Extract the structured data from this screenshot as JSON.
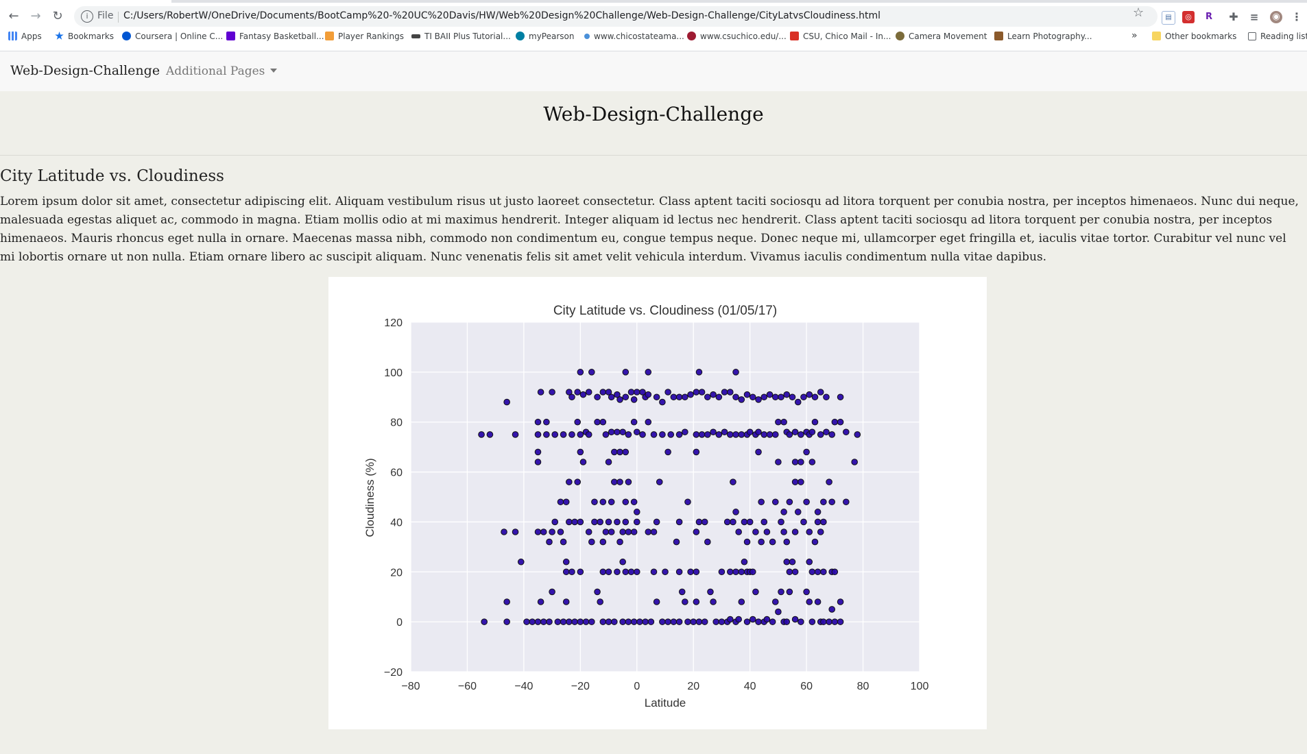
{
  "browser": {
    "back_icon": "back-arrow-icon",
    "forward_icon": "forward-arrow-icon",
    "reload_icon": "reload-icon",
    "file_label": "File",
    "url": "C:/Users/RobertW/OneDrive/Documents/BootCamp%20-%20UC%20Davis/HW/Web%20Design%20Challenge/Web-Design-Challenge/CityLatvsCloudiness.html",
    "bookmarks": [
      {
        "label": "Apps",
        "color": "#4285f4"
      },
      {
        "label": "Bookmarks",
        "color": "#1a73e8"
      },
      {
        "label": "Coursera | Online C...",
        "color": "#0056d2"
      },
      {
        "label": "Fantasy Basketball...",
        "color": "#6001d2"
      },
      {
        "label": "Player Rankings",
        "color": "#f29d38"
      },
      {
        "label": "TI BAII Plus Tutorial...",
        "color": "#444444"
      },
      {
        "label": "myPearson",
        "color": "#007fa3"
      },
      {
        "label": "www.chicostateama...",
        "color": "#4a90d9"
      },
      {
        "label": "www.csuchico.edu/...",
        "color": "#9e1b32"
      },
      {
        "label": "CSU, Chico Mail - In...",
        "color": "#d93025"
      },
      {
        "label": "Camera Movement",
        "color": "#7b6b3a"
      },
      {
        "label": "Learn Photography...",
        "color": "#8b5a2b"
      }
    ],
    "more_bookmarks": "»",
    "other_bookmarks": "Other bookmarks",
    "reading_list": "Reading list"
  },
  "navbar": {
    "brand": "Web-Design-Challenge",
    "dropdown_label": "Additional Pages"
  },
  "page": {
    "title": "Web-Design-Challenge",
    "section_title": "City Latitude vs. Cloudiness",
    "paragraph": "Lorem ipsum dolor sit amet, consectetur adipiscing elit. Aliquam vestibulum risus ut justo laoreet consectetur. Class aptent taciti sociosqu ad litora torquent per conubia nostra, per inceptos himenaeos. Nunc dui neque, malesuada egestas aliquet ac, commodo in magna. Etiam mollis odio at mi maximus hendrerit. Integer aliquam id lectus nec hendrerit. Class aptent taciti sociosqu ad litora torquent per conubia nostra, per inceptos himenaeos. Mauris rhoncus eget nulla in ornare. Maecenas massa nibh, commodo non condimentum eu, congue tempus neque. Donec neque mi, ullamcorper eget fringilla et, iaculis vitae tortor. Curabitur vel nunc vel mi lobortis ornare ut non nulla. Etiam ornare libero ac suscipit aliquam. Nunc venenatis felis sit amet velit vehicula interdum. Vivamus iaculis condimentum nulla vitae dapibus."
  },
  "chart_data": {
    "type": "scatter",
    "title": "City Latitude vs. Cloudiness (01/05/17)",
    "xlabel": "Latitude",
    "ylabel": "Cloudiness (%)",
    "xlim": [
      -80,
      100
    ],
    "ylim": [
      -20,
      120
    ],
    "xticks": [
      -80,
      -60,
      -40,
      -20,
      0,
      20,
      40,
      60,
      80,
      100
    ],
    "yticks": [
      -20,
      0,
      20,
      40,
      60,
      80,
      100,
      120
    ],
    "grid": true,
    "colors": {
      "plot_bg": "#eaeaf2",
      "grid": "#ffffff",
      "marker": "#2a0aa8",
      "marker_edge": "#111111"
    },
    "points": [
      [
        -54,
        0
      ],
      [
        -46,
        0
      ],
      [
        -46,
        8
      ],
      [
        -39,
        0
      ],
      [
        -37,
        0
      ],
      [
        -35,
        0
      ],
      [
        -34,
        8
      ],
      [
        -33,
        0
      ],
      [
        -31,
        0
      ],
      [
        -30,
        12
      ],
      [
        -28,
        0
      ],
      [
        -26,
        0
      ],
      [
        -25,
        8
      ],
      [
        -24,
        0
      ],
      [
        -22,
        0
      ],
      [
        -20,
        0
      ],
      [
        -18,
        0
      ],
      [
        -16,
        0
      ],
      [
        -14,
        12
      ],
      [
        -13,
        8
      ],
      [
        -12,
        0
      ],
      [
        -10,
        0
      ],
      [
        -8,
        0
      ],
      [
        -5,
        0
      ],
      [
        -3,
        0
      ],
      [
        -1,
        0
      ],
      [
        1,
        0
      ],
      [
        3,
        0
      ],
      [
        5,
        0
      ],
      [
        7,
        8
      ],
      [
        9,
        0
      ],
      [
        11,
        0
      ],
      [
        13,
        0
      ],
      [
        15,
        0
      ],
      [
        16,
        12
      ],
      [
        17,
        8
      ],
      [
        18,
        0
      ],
      [
        20,
        0
      ],
      [
        21,
        8
      ],
      [
        22,
        0
      ],
      [
        24,
        0
      ],
      [
        26,
        12
      ],
      [
        27,
        8
      ],
      [
        28,
        0
      ],
      [
        30,
        0
      ],
      [
        32,
        0
      ],
      [
        33,
        1
      ],
      [
        35,
        0
      ],
      [
        36,
        1
      ],
      [
        37,
        8
      ],
      [
        39,
        0
      ],
      [
        41,
        1
      ],
      [
        42,
        12
      ],
      [
        43,
        0
      ],
      [
        45,
        0
      ],
      [
        46,
        1
      ],
      [
        48,
        0
      ],
      [
        49,
        8
      ],
      [
        50,
        4
      ],
      [
        51,
        12
      ],
      [
        52,
        0
      ],
      [
        53,
        0
      ],
      [
        54,
        12
      ],
      [
        56,
        1
      ],
      [
        58,
        0
      ],
      [
        60,
        12
      ],
      [
        61,
        8
      ],
      [
        62,
        0
      ],
      [
        64,
        8
      ],
      [
        65,
        0
      ],
      [
        66,
        0
      ],
      [
        68,
        0
      ],
      [
        69,
        5
      ],
      [
        70,
        0
      ],
      [
        72,
        8
      ],
      [
        72,
        0
      ],
      [
        -41,
        24
      ],
      [
        -25,
        24
      ],
      [
        -25,
        20
      ],
      [
        -23,
        20
      ],
      [
        -20,
        20
      ],
      [
        -12,
        20
      ],
      [
        -10,
        20
      ],
      [
        -7,
        20
      ],
      [
        -5,
        24
      ],
      [
        -4,
        20
      ],
      [
        -2,
        20
      ],
      [
        0,
        20
      ],
      [
        6,
        20
      ],
      [
        10,
        20
      ],
      [
        15,
        20
      ],
      [
        19,
        20
      ],
      [
        21,
        20
      ],
      [
        30,
        20
      ],
      [
        33,
        20
      ],
      [
        35,
        20
      ],
      [
        37,
        20
      ],
      [
        38,
        24
      ],
      [
        39,
        20
      ],
      [
        40,
        20
      ],
      [
        41,
        20
      ],
      [
        53,
        24
      ],
      [
        54,
        20
      ],
      [
        55,
        24
      ],
      [
        56,
        20
      ],
      [
        61,
        24
      ],
      [
        62,
        20
      ],
      [
        64,
        20
      ],
      [
        66,
        20
      ],
      [
        69,
        20
      ],
      [
        70,
        20
      ],
      [
        -47,
        36
      ],
      [
        -43,
        36
      ],
      [
        -35,
        36
      ],
      [
        -33,
        36
      ],
      [
        -31,
        32
      ],
      [
        -30,
        36
      ],
      [
        -29,
        40
      ],
      [
        -27,
        36
      ],
      [
        -26,
        32
      ],
      [
        -24,
        40
      ],
      [
        -22,
        40
      ],
      [
        -20,
        40
      ],
      [
        -17,
        36
      ],
      [
        -16,
        32
      ],
      [
        -15,
        40
      ],
      [
        -13,
        40
      ],
      [
        -12,
        32
      ],
      [
        -11,
        36
      ],
      [
        -10,
        40
      ],
      [
        -9,
        36
      ],
      [
        -7,
        40
      ],
      [
        -6,
        32
      ],
      [
        -5,
        36
      ],
      [
        -4,
        40
      ],
      [
        -3,
        36
      ],
      [
        -1,
        36
      ],
      [
        0,
        40
      ],
      [
        4,
        36
      ],
      [
        6,
        36
      ],
      [
        7,
        40
      ],
      [
        14,
        32
      ],
      [
        15,
        40
      ],
      [
        21,
        36
      ],
      [
        22,
        40
      ],
      [
        24,
        40
      ],
      [
        25,
        32
      ],
      [
        32,
        40
      ],
      [
        34,
        40
      ],
      [
        36,
        36
      ],
      [
        38,
        40
      ],
      [
        39,
        32
      ],
      [
        40,
        40
      ],
      [
        42,
        36
      ],
      [
        44,
        32
      ],
      [
        45,
        40
      ],
      [
        46,
        36
      ],
      [
        48,
        32
      ],
      [
        51,
        40
      ],
      [
        52,
        36
      ],
      [
        53,
        32
      ],
      [
        56,
        36
      ],
      [
        59,
        40
      ],
      [
        61,
        36
      ],
      [
        63,
        32
      ],
      [
        64,
        40
      ],
      [
        65,
        36
      ],
      [
        66,
        40
      ],
      [
        -27,
        48
      ],
      [
        -25,
        48
      ],
      [
        -24,
        56
      ],
      [
        -21,
        56
      ],
      [
        -15,
        48
      ],
      [
        -12,
        48
      ],
      [
        -9,
        48
      ],
      [
        -8,
        56
      ],
      [
        -6,
        56
      ],
      [
        -4,
        48
      ],
      [
        -3,
        56
      ],
      [
        -1,
        48
      ],
      [
        0,
        44
      ],
      [
        8,
        56
      ],
      [
        18,
        48
      ],
      [
        34,
        56
      ],
      [
        35,
        44
      ],
      [
        44,
        48
      ],
      [
        49,
        48
      ],
      [
        52,
        44
      ],
      [
        54,
        48
      ],
      [
        56,
        56
      ],
      [
        57,
        44
      ],
      [
        58,
        56
      ],
      [
        60,
        48
      ],
      [
        64,
        44
      ],
      [
        66,
        48
      ],
      [
        68,
        56
      ],
      [
        69,
        48
      ],
      [
        74,
        48
      ],
      [
        -35,
        64
      ],
      [
        -35,
        68
      ],
      [
        -20,
        68
      ],
      [
        -19,
        64
      ],
      [
        -10,
        64
      ],
      [
        -8,
        68
      ],
      [
        -6,
        68
      ],
      [
        -4,
        68
      ],
      [
        11,
        68
      ],
      [
        21,
        68
      ],
      [
        43,
        68
      ],
      [
        50,
        64
      ],
      [
        56,
        64
      ],
      [
        58,
        64
      ],
      [
        60,
        68
      ],
      [
        62,
        64
      ],
      [
        77,
        64
      ],
      [
        -55,
        75
      ],
      [
        -52,
        75
      ],
      [
        -43,
        75
      ],
      [
        -35,
        75
      ],
      [
        -35,
        80
      ],
      [
        -32,
        80
      ],
      [
        -32,
        75
      ],
      [
        -29,
        75
      ],
      [
        -26,
        75
      ],
      [
        -23,
        75
      ],
      [
        -21,
        80
      ],
      [
        -20,
        75
      ],
      [
        -18,
        76
      ],
      [
        -17,
        75
      ],
      [
        -14,
        80
      ],
      [
        -12,
        80
      ],
      [
        -11,
        75
      ],
      [
        -9,
        76
      ],
      [
        -7,
        76
      ],
      [
        -5,
        76
      ],
      [
        -3,
        75
      ],
      [
        -1,
        80
      ],
      [
        0,
        76
      ],
      [
        2,
        75
      ],
      [
        4,
        80
      ],
      [
        6,
        75
      ],
      [
        9,
        75
      ],
      [
        12,
        75
      ],
      [
        15,
        75
      ],
      [
        17,
        76
      ],
      [
        21,
        75
      ],
      [
        23,
        75
      ],
      [
        25,
        75
      ],
      [
        27,
        76
      ],
      [
        29,
        75
      ],
      [
        31,
        76
      ],
      [
        33,
        75
      ],
      [
        35,
        75
      ],
      [
        37,
        75
      ],
      [
        39,
        75
      ],
      [
        40,
        76
      ],
      [
        42,
        75
      ],
      [
        43,
        76
      ],
      [
        45,
        75
      ],
      [
        47,
        75
      ],
      [
        49,
        75
      ],
      [
        50,
        80
      ],
      [
        52,
        80
      ],
      [
        53,
        76
      ],
      [
        54,
        75
      ],
      [
        56,
        76
      ],
      [
        58,
        75
      ],
      [
        60,
        76
      ],
      [
        61,
        75
      ],
      [
        62,
        76
      ],
      [
        63,
        80
      ],
      [
        65,
        75
      ],
      [
        67,
        76
      ],
      [
        69,
        75
      ],
      [
        70,
        80
      ],
      [
        72,
        80
      ],
      [
        74,
        76
      ],
      [
        78,
        75
      ],
      [
        -46,
        88
      ],
      [
        -34,
        92
      ],
      [
        -30,
        92
      ],
      [
        -24,
        92
      ],
      [
        -23,
        90
      ],
      [
        -21,
        92
      ],
      [
        -19,
        91
      ],
      [
        -17,
        92
      ],
      [
        -14,
        90
      ],
      [
        -12,
        92
      ],
      [
        -10,
        92
      ],
      [
        -9,
        90
      ],
      [
        -7,
        91
      ],
      [
        -6,
        89
      ],
      [
        -4,
        90
      ],
      [
        -2,
        92
      ],
      [
        -1,
        89
      ],
      [
        0,
        92
      ],
      [
        2,
        92
      ],
      [
        3,
        90
      ],
      [
        4,
        91
      ],
      [
        7,
        90
      ],
      [
        9,
        88
      ],
      [
        11,
        92
      ],
      [
        13,
        90
      ],
      [
        15,
        90
      ],
      [
        17,
        90
      ],
      [
        19,
        91
      ],
      [
        21,
        92
      ],
      [
        23,
        92
      ],
      [
        25,
        90
      ],
      [
        27,
        91
      ],
      [
        29,
        90
      ],
      [
        31,
        92
      ],
      [
        33,
        92
      ],
      [
        35,
        90
      ],
      [
        37,
        89
      ],
      [
        39,
        91
      ],
      [
        41,
        90
      ],
      [
        43,
        89
      ],
      [
        45,
        90
      ],
      [
        47,
        91
      ],
      [
        49,
        90
      ],
      [
        51,
        90
      ],
      [
        53,
        91
      ],
      [
        55,
        90
      ],
      [
        57,
        88
      ],
      [
        59,
        90
      ],
      [
        61,
        91
      ],
      [
        63,
        90
      ],
      [
        65,
        92
      ],
      [
        67,
        90
      ],
      [
        72,
        90
      ],
      [
        -20,
        100
      ],
      [
        -16,
        100
      ],
      [
        -4,
        100
      ],
      [
        4,
        100
      ],
      [
        22,
        100
      ],
      [
        35,
        100
      ]
    ]
  }
}
